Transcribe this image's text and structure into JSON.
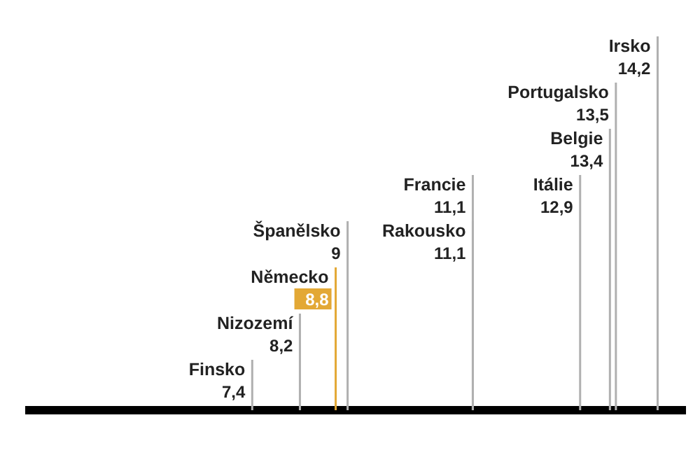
{
  "chart_data": {
    "type": "other",
    "categories": [
      "Finsko",
      "Nizozemí",
      "Německo",
      "Španělsko",
      "Rakousko",
      "Francie",
      "Itálie",
      "Belgie",
      "Portugalsko",
      "Irsko"
    ],
    "values": [
      7.4,
      8.2,
      8.8,
      9,
      11.1,
      11.1,
      12.9,
      13.4,
      13.5,
      14.2
    ],
    "color": "#b0b0b0",
    "colors": [
      "#b0b0b0",
      "#b0b0b0",
      "#e3a835",
      "#b0b0b0",
      "#b0b0b0",
      "#b0b0b0",
      "#b0b0b0",
      "#b0b0b0",
      "#b0b0b0",
      "#b0b0b0"
    ],
    "value_labels": [
      "7,4",
      "8,2",
      "8,8",
      "9",
      "11,1",
      "11,1",
      "12,9",
      "13,4",
      "13,5",
      "14,2"
    ]
  }
}
